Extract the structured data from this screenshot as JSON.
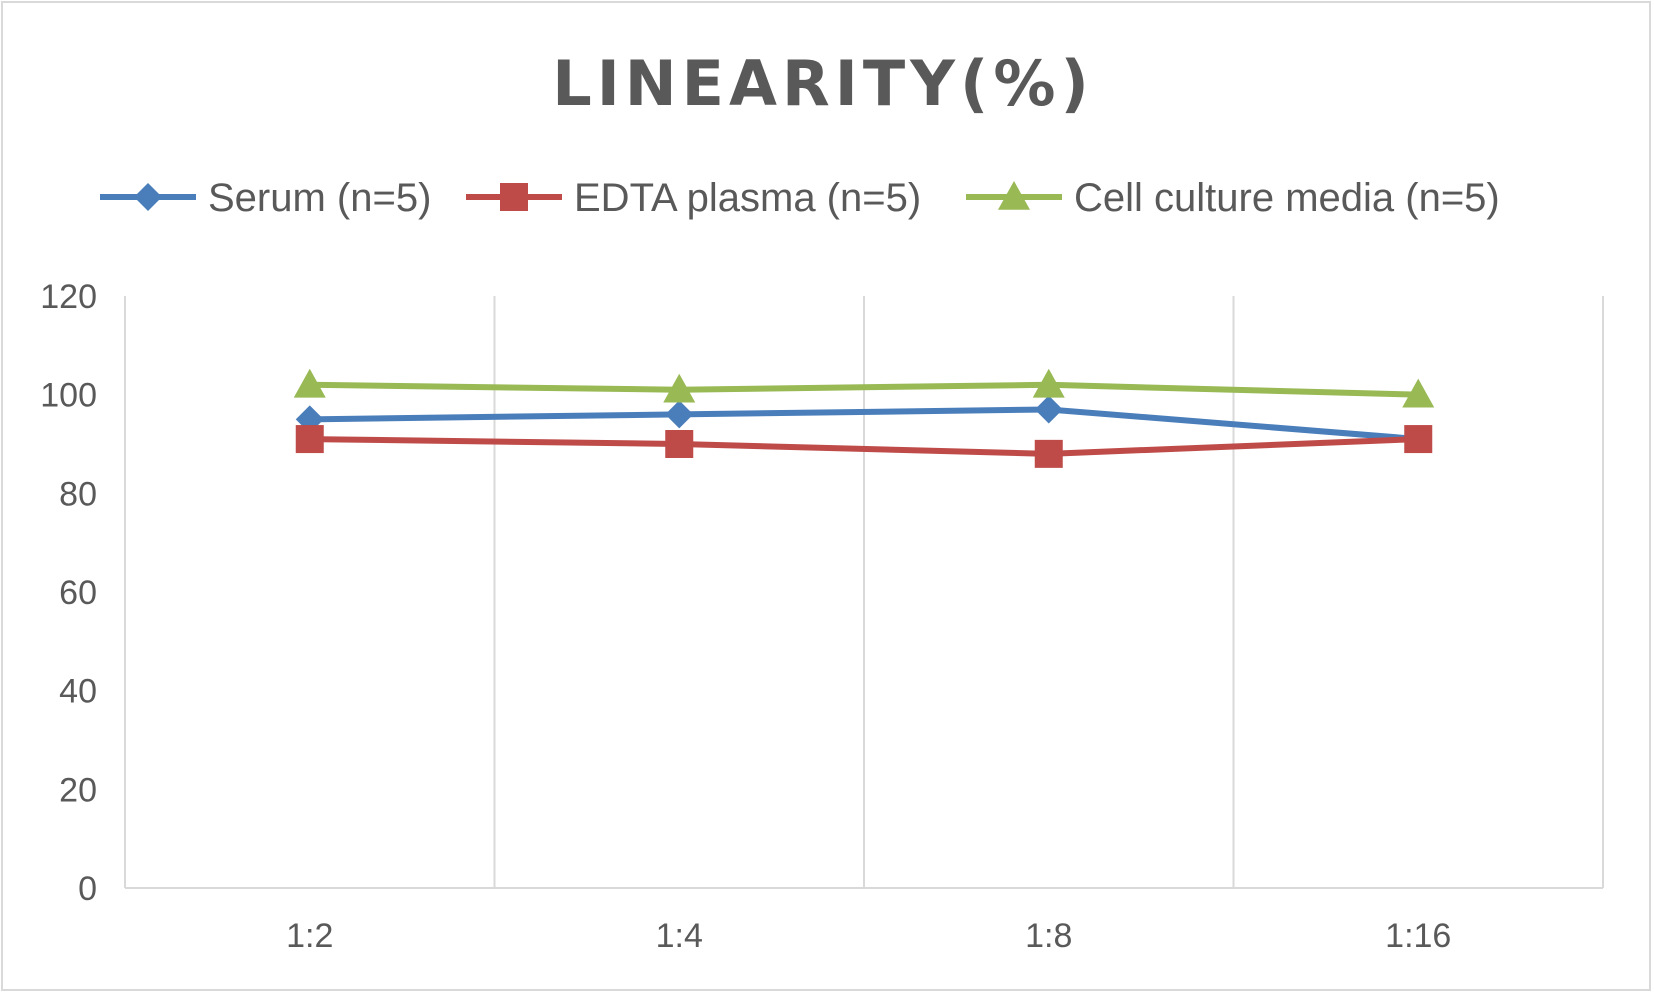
{
  "chart_data": {
    "type": "line",
    "title": "LINEARITY(%)",
    "categories": [
      "1:2",
      "1:4",
      "1:8",
      "1:16"
    ],
    "ylim": [
      0,
      120
    ],
    "yticks": [
      0,
      20,
      40,
      60,
      80,
      100,
      120
    ],
    "grid": "vertical",
    "legend_position": "top",
    "series": [
      {
        "name": "Serum (n=5)",
        "color": "#4a7ebb",
        "marker": "diamond",
        "values": [
          95,
          96,
          97,
          91
        ]
      },
      {
        "name": "EDTA plasma (n=5)",
        "color": "#be4b48",
        "marker": "square",
        "values": [
          91,
          90,
          88,
          91
        ]
      },
      {
        "name": "Cell culture media (n=5)",
        "color": "#98b954",
        "marker": "triangle",
        "values": [
          102,
          101,
          102,
          100
        ]
      }
    ]
  }
}
